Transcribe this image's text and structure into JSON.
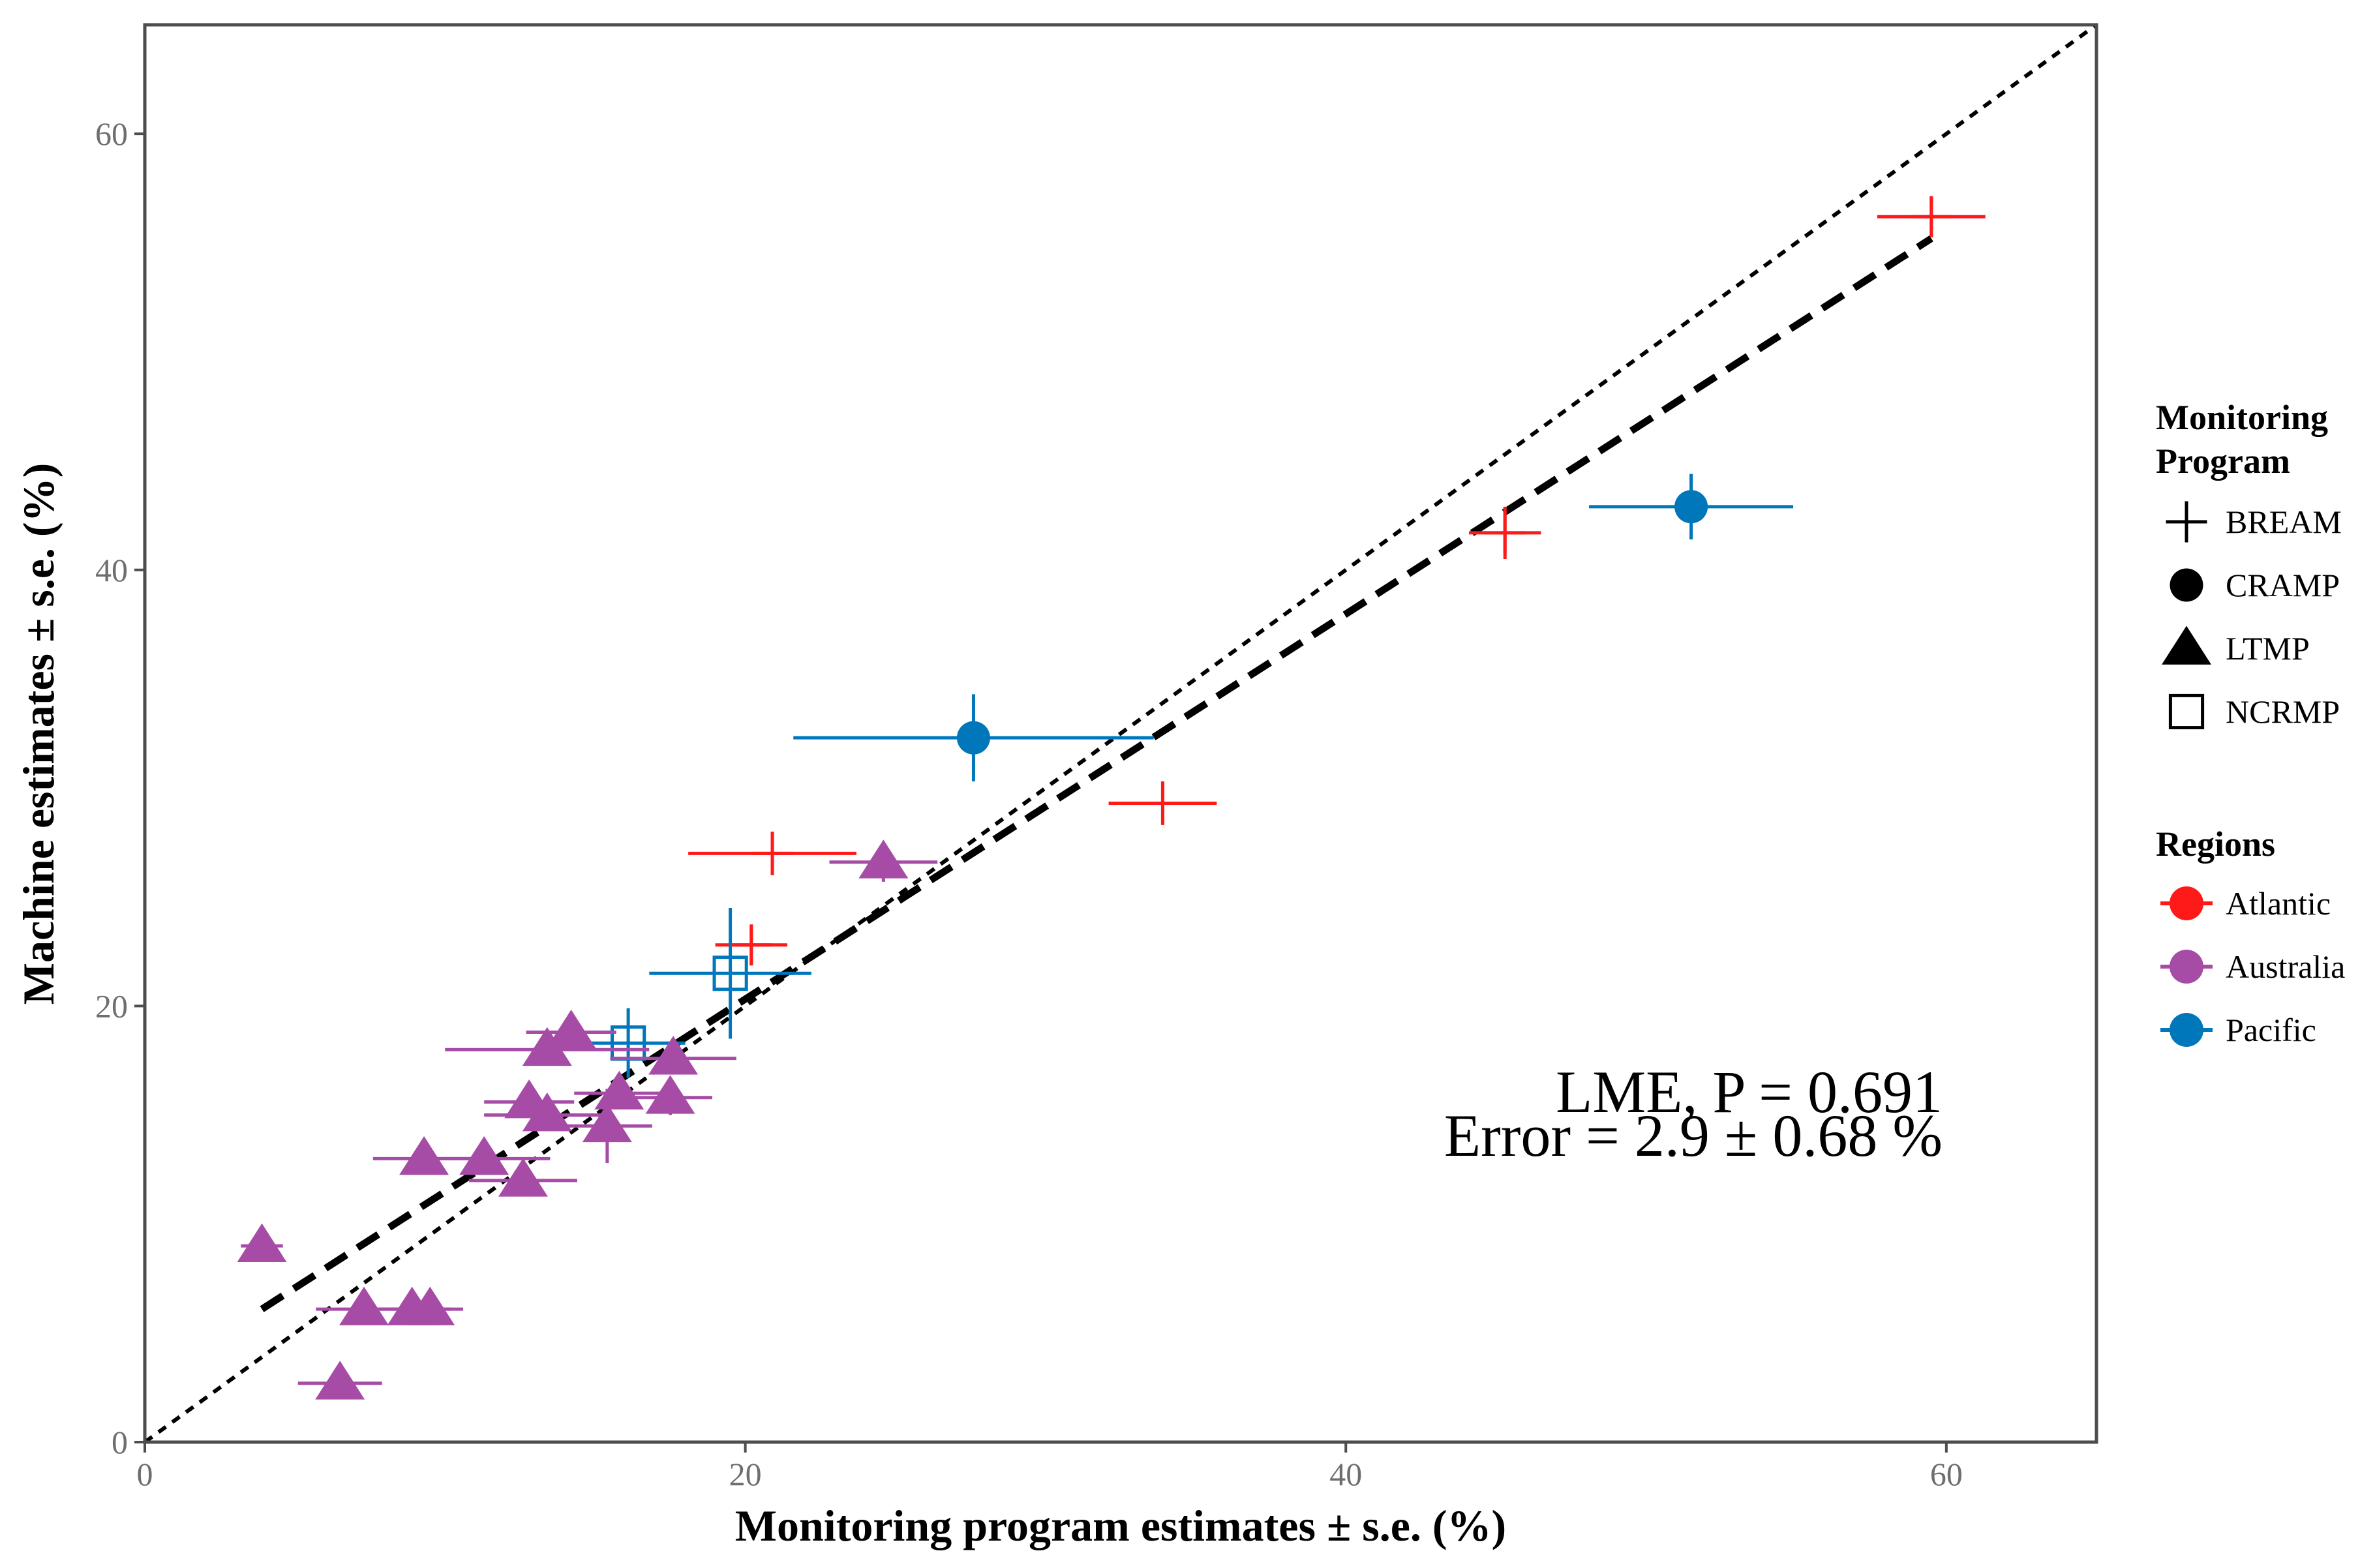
{
  "chart_data": {
    "type": "scatter",
    "title": "",
    "xlabel": "Monitoring program estimates ± s.e. (%)",
    "ylabel": "Machine estimates ± s.e. (%)",
    "xlim": [
      0,
      65
    ],
    "ylim": [
      0,
      65
    ],
    "x_ticks": [
      0,
      20,
      40,
      60
    ],
    "y_ticks": [
      0,
      20,
      40,
      60
    ],
    "grid": false,
    "legend_position": "right",
    "legend": {
      "program_title_line1": "Monitoring",
      "program_title_line2": "Program",
      "programs": [
        {
          "name": "BREAM",
          "shape": "plus"
        },
        {
          "name": "CRAMP",
          "shape": "circle"
        },
        {
          "name": "LTMP",
          "shape": "triangle"
        },
        {
          "name": "NCRMP",
          "shape": "open-square"
        }
      ],
      "regions_title": "Regions",
      "regions": [
        {
          "name": "Atlantic",
          "color": "#ff1a1a"
        },
        {
          "name": "Australia",
          "color": "#a64ca6"
        },
        {
          "name": "Pacific",
          "color": "#0077bb"
        }
      ]
    },
    "annotations": [
      "LME, P = 0.691",
      "Error = 2.9 ± 0.68 %"
    ],
    "reference_lines": [
      {
        "name": "identity (1:1)",
        "style": "short-dash",
        "x": [
          0,
          65
        ],
        "y": [
          0,
          65
        ]
      },
      {
        "name": "fit",
        "style": "long-dash",
        "x": [
          3.9,
          59.5
        ],
        "y": [
          6.1,
          55.2
        ]
      }
    ],
    "points": [
      {
        "program": "BREAM",
        "region": "Atlantic",
        "x": 59.5,
        "y": 56.2,
        "xerr": 1.8,
        "yerr": 0.9
      },
      {
        "program": "BREAM",
        "region": "Atlantic",
        "x": 45.3,
        "y": 41.7,
        "xerr": 1.2,
        "yerr": 1.2
      },
      {
        "program": "BREAM",
        "region": "Atlantic",
        "x": 33.9,
        "y": 29.3,
        "xerr": 1.8,
        "yerr": 1.0
      },
      {
        "program": "BREAM",
        "region": "Atlantic",
        "x": 20.9,
        "y": 27.0,
        "xerr": 2.8,
        "yerr": 1.0
      },
      {
        "program": "BREAM",
        "region": "Atlantic",
        "x": 20.2,
        "y": 22.8,
        "xerr": 1.2,
        "yerr": 0.9
      },
      {
        "program": "CRAMP",
        "region": "Pacific",
        "x": 51.5,
        "y": 42.9,
        "xerr": 3.4,
        "yerr": 1.5
      },
      {
        "program": "CRAMP",
        "region": "Pacific",
        "x": 27.6,
        "y": 32.3,
        "xerr": 6.0,
        "yerr": 2.0
      },
      {
        "program": "NCRMP",
        "region": "Pacific",
        "x": 19.5,
        "y": 21.5,
        "xerr": 2.7,
        "yerr": 3.0
      },
      {
        "program": "NCRMP",
        "region": "Pacific",
        "x": 16.1,
        "y": 18.3,
        "xerr": 1.9,
        "yerr": 1.6
      },
      {
        "program": "LTMP",
        "region": "Australia",
        "x": 24.6,
        "y": 26.6,
        "xerr": 1.8,
        "yerr": 0.9
      },
      {
        "program": "LTMP",
        "region": "Australia",
        "x": 14.2,
        "y": 18.8,
        "xerr": 1.5,
        "yerr": 0.7
      },
      {
        "program": "LTMP",
        "region": "Australia",
        "x": 13.4,
        "y": 18.0,
        "xerr": 3.4,
        "yerr": 0.7
      },
      {
        "program": "LTMP",
        "region": "Australia",
        "x": 17.6,
        "y": 17.6,
        "xerr": 2.1,
        "yerr": 0.7
      },
      {
        "program": "LTMP",
        "region": "Australia",
        "x": 15.8,
        "y": 16.0,
        "xerr": 1.5,
        "yerr": 0.7
      },
      {
        "program": "LTMP",
        "region": "Australia",
        "x": 17.5,
        "y": 15.8,
        "xerr": 1.4,
        "yerr": 0.8
      },
      {
        "program": "LTMP",
        "region": "Australia",
        "x": 12.8,
        "y": 15.6,
        "xerr": 1.5,
        "yerr": 0.7
      },
      {
        "program": "LTMP",
        "region": "Australia",
        "x": 13.4,
        "y": 15.0,
        "xerr": 2.1,
        "yerr": 0.7
      },
      {
        "program": "LTMP",
        "region": "Australia",
        "x": 15.4,
        "y": 14.5,
        "xerr": 1.5,
        "yerr": 1.7
      },
      {
        "program": "LTMP",
        "region": "Australia",
        "x": 9.3,
        "y": 13.0,
        "xerr": 1.7,
        "yerr": 0.5
      },
      {
        "program": "LTMP",
        "region": "Australia",
        "x": 11.3,
        "y": 13.0,
        "xerr": 2.2,
        "yerr": 0.5
      },
      {
        "program": "LTMP",
        "region": "Australia",
        "x": 12.6,
        "y": 12.0,
        "xerr": 1.8,
        "yerr": 0.5
      },
      {
        "program": "LTMP",
        "region": "Australia",
        "x": 3.9,
        "y": 9.0,
        "xerr": 0.7,
        "yerr": 0.4
      },
      {
        "program": "LTMP",
        "region": "Australia",
        "x": 7.3,
        "y": 6.1,
        "xerr": 1.6,
        "yerr": 0.4
      },
      {
        "program": "LTMP",
        "region": "Australia",
        "x": 8.9,
        "y": 6.1,
        "xerr": 1.3,
        "yerr": 0.4
      },
      {
        "program": "LTMP",
        "region": "Australia",
        "x": 9.5,
        "y": 6.1,
        "xerr": 1.1,
        "yerr": 0.4
      },
      {
        "program": "LTMP",
        "region": "Australia",
        "x": 6.5,
        "y": 2.7,
        "xerr": 1.4,
        "yerr": 0.3
      }
    ]
  }
}
